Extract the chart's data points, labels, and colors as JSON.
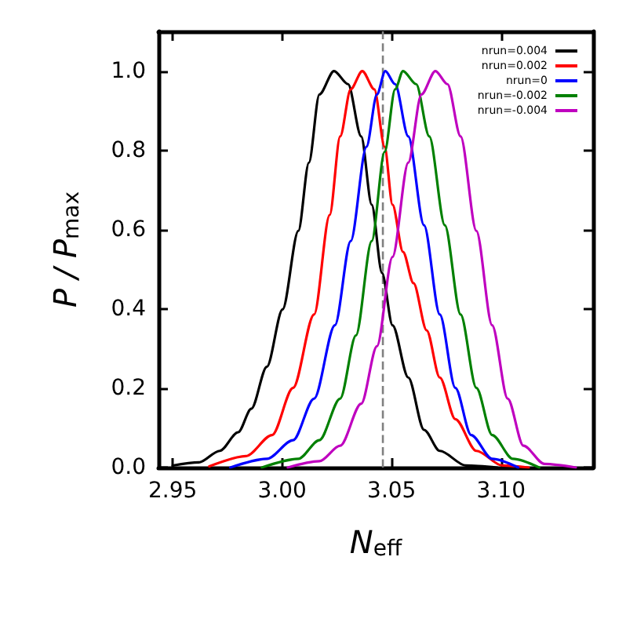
{
  "chart_data": {
    "type": "line",
    "xlabel": "N$_{eff}$",
    "ylabel": "P / P$_{max}$",
    "xlim": [
      2.9435,
      3.142
    ],
    "ylim": [
      0,
      1.1
    ],
    "xticks": [
      2.95,
      {
        "value": 3.0,
        "label": "3.00"
      },
      3.05,
      {
        "value": 3.1,
        "label": "3.10"
      }
    ],
    "yticks": [
      {
        "value": 0,
        "label": "0.0"
      },
      {
        "value": 0.2,
        "label": "0.2"
      },
      {
        "value": 0.4,
        "label": "0.4"
      },
      {
        "value": 0.6,
        "label": "0.6"
      },
      {
        "value": 0.8,
        "label": "0.8"
      },
      {
        "value": 1.0,
        "label": "1.0"
      }
    ],
    "grid": false,
    "legend": "top right",
    "marker": "none",
    "line_style": "solid",
    "ref_lines": [
      {
        "axis": "x",
        "value": 3.046,
        "label": null,
        "color": "#808080",
        "line_style": "dashed"
      }
    ],
    "series": [
      {
        "name": "nrun=0.004",
        "color": "#000000",
        "x": [
          2.95,
          2.962,
          2.9715,
          2.9799,
          2.9859,
          2.993,
          3.0002,
          3.0074,
          3.0122,
          3.017,
          3.0237,
          3.0301,
          3.0361,
          3.0409,
          3.0456,
          3.0504,
          3.0576,
          3.0648,
          3.072,
          3.0839,
          3.0983
        ],
        "values": [
          0.005,
          0.013,
          0.042,
          0.089,
          0.148,
          0.254,
          0.399,
          0.597,
          0.769,
          0.941,
          1.0,
          0.967,
          0.835,
          0.663,
          0.491,
          0.359,
          0.227,
          0.095,
          0.042,
          0.005,
          0
        ]
      },
      {
        "name": "nrun=0.002",
        "color": "#ff0000",
        "x": [
          2.9667,
          2.9835,
          2.9954,
          3.005,
          3.0146,
          3.0217,
          3.0265,
          3.0313,
          3.0366,
          3.0421,
          3.0468,
          3.0504,
          3.0552,
          3.06,
          3.066,
          3.072,
          3.0791,
          3.0887,
          3.1006,
          3.1126
        ],
        "values": [
          0.003,
          0.029,
          0.082,
          0.201,
          0.386,
          0.637,
          0.835,
          0.954,
          1.0,
          0.954,
          0.809,
          0.663,
          0.544,
          0.465,
          0.346,
          0.227,
          0.122,
          0.042,
          0.005,
          0
        ]
      },
      {
        "name": "nrun=0",
        "color": "#0000ff",
        "x": [
          2.9763,
          2.993,
          3.005,
          3.0146,
          3.0241,
          3.0313,
          3.0385,
          3.0433,
          3.0471,
          3.0516,
          3.0576,
          3.0648,
          3.072,
          3.0791,
          3.0863,
          3.0959,
          3.1078
        ],
        "values": [
          0,
          0.022,
          0.069,
          0.174,
          0.359,
          0.571,
          0.809,
          0.941,
          1.0,
          0.967,
          0.835,
          0.611,
          0.386,
          0.201,
          0.082,
          0.022,
          0
        ]
      },
      {
        "name": "nrun=-0.002",
        "color": "#008000",
        "x": [
          2.9907,
          3.0074,
          3.017,
          3.0265,
          3.0337,
          3.0409,
          3.0468,
          3.0516,
          3.0552,
          3.0612,
          3.0672,
          3.0743,
          3.0815,
          3.0887,
          3.0959,
          3.1054,
          3.1174
        ],
        "values": [
          0,
          0.022,
          0.069,
          0.174,
          0.333,
          0.571,
          0.796,
          0.954,
          1.0,
          0.967,
          0.835,
          0.611,
          0.386,
          0.201,
          0.082,
          0.022,
          0
        ]
      },
      {
        "name": "nrun=-0.004",
        "color": "#bf00bf",
        "x": [
          3.0026,
          3.017,
          3.0265,
          3.0361,
          3.0433,
          3.0504,
          3.0576,
          3.0636,
          3.07,
          3.0755,
          3.0815,
          3.0887,
          3.0959,
          3.103,
          3.1102,
          3.1198,
          3.1341
        ],
        "values": [
          0,
          0.016,
          0.055,
          0.161,
          0.306,
          0.531,
          0.769,
          0.941,
          1.0,
          0.967,
          0.835,
          0.597,
          0.359,
          0.174,
          0.055,
          0.009,
          0
        ]
      }
    ]
  }
}
